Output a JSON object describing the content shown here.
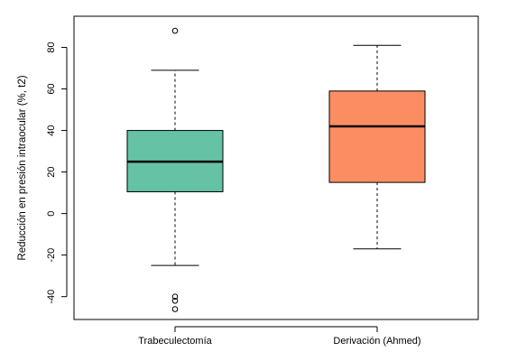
{
  "chart_data": {
    "type": "boxplot",
    "title": "",
    "xlabel": "",
    "ylabel": "Reducción en presión intraocular (%, t2)",
    "ylim": [
      -51,
      95
    ],
    "yticks": [
      -40,
      -20,
      0,
      20,
      40,
      60,
      80
    ],
    "grid": false,
    "categories": [
      "Trabeculectomía",
      "Derivación (Ahmed)"
    ],
    "series": [
      {
        "whisker_low": -25,
        "q1": 10.5,
        "median": 25,
        "q3": 40,
        "whisker_high": 69,
        "outliers": [
          88,
          -40,
          -42,
          -46
        ],
        "color": "#66c2a5"
      },
      {
        "whisker_low": -17,
        "q1": 15,
        "median": 42,
        "q3": 59,
        "whisker_high": 81,
        "outliers": [],
        "color": "#fc8d62"
      }
    ]
  }
}
